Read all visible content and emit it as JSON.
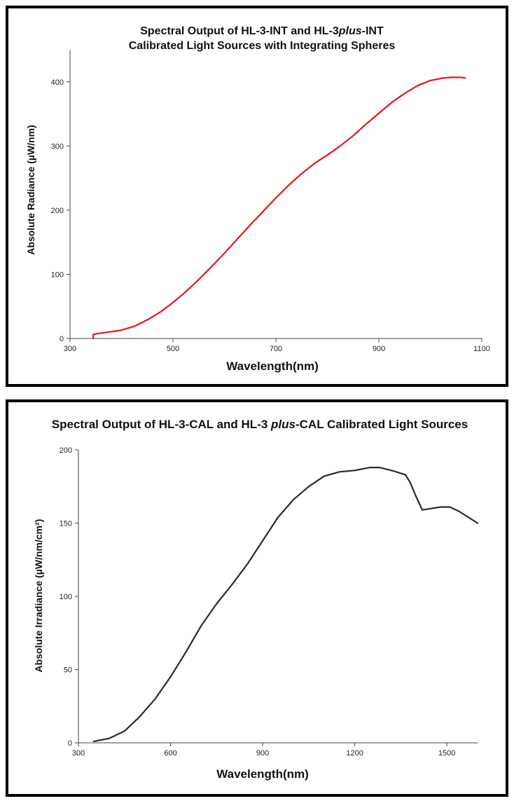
{
  "chart_data": [
    {
      "type": "line",
      "title": [
        "Spectral Output of HL-3-INT and HL-3plus-INT",
        "Calibrated Light Sources with Integrating Spheres"
      ],
      "title_italic_word": "plus",
      "xlabel": "Wavelength(nm)",
      "ylabel": "Absolute Radiance (µW/nm)",
      "xlim": [
        300,
        1100
      ],
      "ylim": [
        0,
        450
      ],
      "xticks": [
        300,
        500,
        700,
        900,
        1100
      ],
      "yticks": [
        0,
        100,
        200,
        300,
        400
      ],
      "grid": false,
      "series": [
        {
          "color": "#e8161b",
          "x": [
            345,
            345,
            350,
            375,
            400,
            425,
            450,
            475,
            500,
            525,
            550,
            575,
            600,
            625,
            650,
            675,
            700,
            725,
            750,
            775,
            800,
            825,
            850,
            875,
            900,
            925,
            950,
            975,
            1000,
            1025,
            1040,
            1050,
            1060,
            1068
          ],
          "y": [
            0,
            6,
            7,
            10,
            13,
            19,
            29,
            41,
            56,
            73,
            92,
            112,
            133,
            155,
            177,
            198,
            219,
            239,
            257,
            273,
            286,
            300,
            316,
            334,
            351,
            368,
            382,
            394,
            402,
            406,
            407,
            407,
            407,
            406
          ]
        }
      ]
    },
    {
      "type": "line",
      "title": "Spectral Output of HL-3-CAL and HL-3 plus-CAL Calibrated Light Sources",
      "title_italic_word": "plus",
      "xlabel": "Wavelength(nm)",
      "ylabel": "Absolute Irradiance (µW/nm/cm²)",
      "xlim": [
        300,
        1600
      ],
      "ylim": [
        0,
        200
      ],
      "xticks": [
        300,
        600,
        900,
        1200,
        1500
      ],
      "yticks": [
        0,
        50,
        100,
        150,
        200
      ],
      "grid": false,
      "series": [
        {
          "color": "#2a2a2a",
          "x": [
            350,
            400,
            450,
            500,
            550,
            600,
            650,
            700,
            750,
            800,
            850,
            900,
            950,
            1000,
            1050,
            1100,
            1150,
            1200,
            1250,
            1280,
            1320,
            1350,
            1365,
            1380,
            1400,
            1420,
            1450,
            1480,
            1510,
            1540,
            1570,
            1600
          ],
          "y": [
            1,
            3,
            8,
            18,
            30,
            45,
            62,
            80,
            95,
            108,
            122,
            138,
            154,
            166,
            175,
            182,
            185,
            186,
            188,
            188,
            186,
            184,
            183,
            178,
            168,
            159,
            160,
            161,
            161,
            158,
            154,
            150
          ]
        }
      ]
    }
  ]
}
